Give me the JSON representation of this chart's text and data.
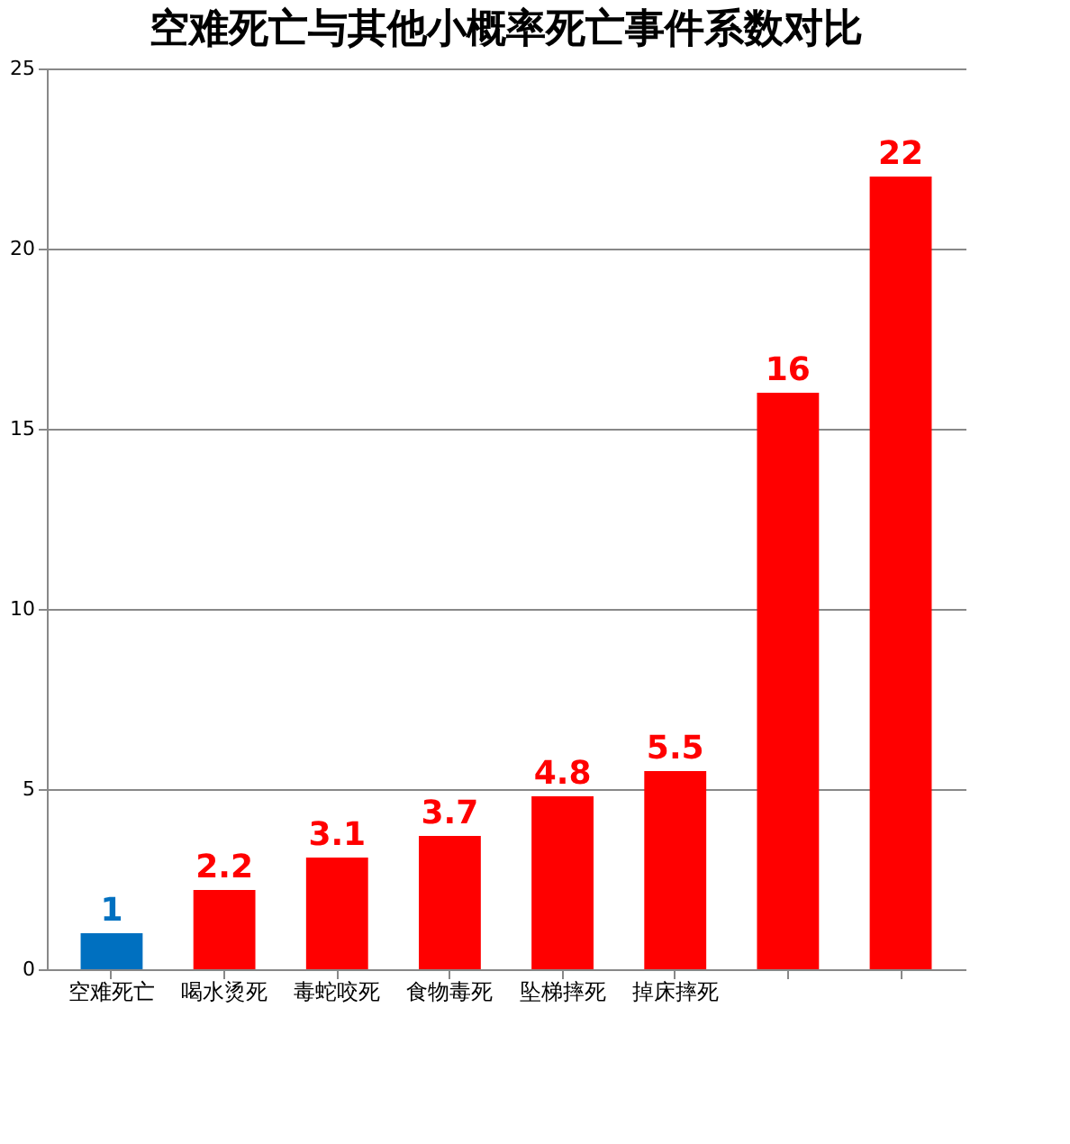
{
  "chart_data": {
    "type": "bar",
    "title": "空难死亡与其他小概率死亡事件系数对比",
    "categories": [
      "空难死亡",
      "喝水烫死",
      "毒蛇咬死",
      "食物毒死",
      "坠梯摔死",
      "掉床摔死",
      null,
      null
    ],
    "values": [
      1,
      2.2,
      3.1,
      3.7,
      4.8,
      5.5,
      16,
      22
    ],
    "colors": [
      "#0070c0",
      "#ff0000",
      "#ff0000",
      "#ff0000",
      "#ff0000",
      "#ff0000",
      "#ff0000",
      "#ff0000"
    ],
    "ylim": [
      0,
      25
    ],
    "yticks": [
      0,
      5,
      10,
      15,
      20,
      25
    ],
    "grid": "y",
    "data_labels": true
  }
}
